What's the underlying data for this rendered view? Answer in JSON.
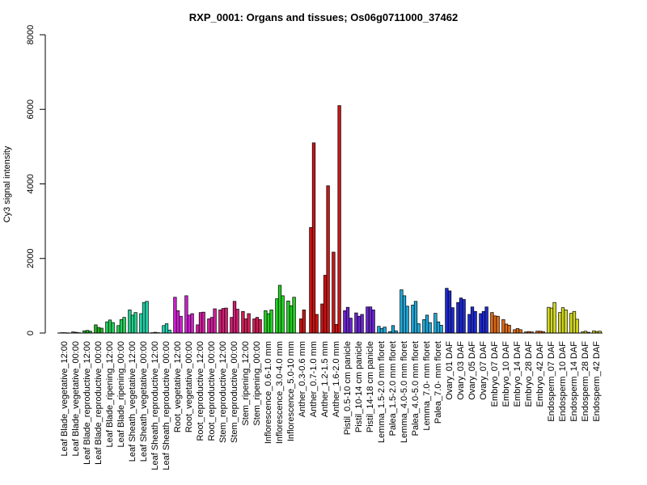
{
  "chart_data": {
    "type": "bar",
    "title": "RXP_0001: Organs and tissues; Os06g0711000_37462",
    "ylabel": "Cy3 signal intensity",
    "xlabel": "",
    "ylim": [
      0,
      8000
    ],
    "yticks": [
      0,
      2000,
      4000,
      6000,
      8000
    ],
    "grid": false,
    "groups": [
      {
        "label": "Leaf Blade_vegetative_12:00",
        "color": "#7f7f7f",
        "values": [
          10,
          10,
          5
        ]
      },
      {
        "label": "Leaf Blade_vegetative_00:00",
        "color": "#7f7f7f",
        "values": [
          30,
          20,
          10
        ]
      },
      {
        "label": "Leaf Blade_reproductive_12:00",
        "color": "#23b123",
        "values": [
          60,
          70,
          50
        ]
      },
      {
        "label": "Leaf Blade_reproductive_00:00",
        "color": "#23b123",
        "values": [
          220,
          150,
          130
        ]
      },
      {
        "label": "Leaf Blade_ripening_12:00",
        "color": "#23d15a",
        "values": [
          300,
          350,
          280
        ]
      },
      {
        "label": "Leaf Blade_ripening_00:00",
        "color": "#23d15a",
        "values": [
          200,
          360,
          420
        ]
      },
      {
        "label": "Leaf Sheath_vegetative_12:00",
        "color": "#23d18e",
        "values": [
          620,
          480,
          550
        ]
      },
      {
        "label": "Leaf Sheath_vegetative_00:00",
        "color": "#23d1a8",
        "values": [
          520,
          820,
          850
        ]
      },
      {
        "label": "Leaf Sheath_reproductive_12:00",
        "color": "#23d1b0",
        "values": [
          10,
          20,
          10
        ]
      },
      {
        "label": "Leaf Sheath_reproductive_00:00",
        "color": "#23d1b0",
        "values": [
          200,
          250,
          80
        ]
      },
      {
        "label": "Root_vegetative_12:00",
        "color": "#d11fd1",
        "values": [
          960,
          600,
          450
        ]
      },
      {
        "label": "Root_vegetative_00:00",
        "color": "#d11fd1",
        "values": [
          1000,
          480,
          520
        ]
      },
      {
        "label": "Root_reproductive_12:00",
        "color": "#d11f9e",
        "values": [
          220,
          550,
          560
        ]
      },
      {
        "label": "Root_reproductive_00:00",
        "color": "#d11f9e",
        "values": [
          380,
          420,
          650
        ]
      },
      {
        "label": "Stem_reproductive_12:00",
        "color": "#d11f75",
        "values": [
          620,
          660,
          670
        ]
      },
      {
        "label": "Stem_reproductive_00:00",
        "color": "#d11f75",
        "values": [
          420,
          850,
          640
        ]
      },
      {
        "label": "Stem_ripening_12:00",
        "color": "#d11f55",
        "values": [
          580,
          380,
          520
        ]
      },
      {
        "label": "Stem_ripening_00:00",
        "color": "#d11f55",
        "values": [
          380,
          420,
          360
        ]
      },
      {
        "label": "Inflorescence_0.6-1.0 mm",
        "color": "#23d123",
        "values": [
          600,
          520,
          620
        ]
      },
      {
        "label": "Inflorescence_3.0-4.0 mm",
        "color": "#23d123",
        "values": [
          920,
          1280,
          1000
        ]
      },
      {
        "label": "Inflorescence_5.0-10 mm",
        "color": "#23d123",
        "values": [
          860,
          730,
          960
        ]
      },
      {
        "label": "Anther_0.3-0.6 mm",
        "color": "#cc1515",
        "values": [
          380,
          620
        ]
      },
      {
        "label": "Anther_0.7-1.0 mm",
        "color": "#cc1515",
        "values": [
          2830,
          5100,
          500
        ]
      },
      {
        "label": "Anther_1.2-1.5 mm",
        "color": "#cc1515",
        "values": [
          780,
          1550,
          3950
        ]
      },
      {
        "label": "Anther_1.6-2.0 mm",
        "color": "#cc1515",
        "values": [
          2170,
          230,
          6100
        ]
      },
      {
        "label": "Pistil_0.5-10 cm panicle",
        "color": "#6a25d1",
        "values": [
          600,
          690,
          400
        ]
      },
      {
        "label": "Pistil_10-14 cm panicle",
        "color": "#6a25d1",
        "values": [
          540,
          450,
          500
        ]
      },
      {
        "label": "Pistil_14-18 cm panicle",
        "color": "#6a25d1",
        "values": [
          700,
          700,
          620
        ]
      },
      {
        "label": "Lemma_1.5-2.0 mm floret",
        "color": "#20a8d9",
        "values": [
          180,
          120,
          160
        ]
      },
      {
        "label": "Palea_1.5-2.0 mm floret",
        "color": "#20a8d9",
        "values": [
          40,
          200,
          60
        ]
      },
      {
        "label": "Lemma_4.0-5.0 mm floret",
        "color": "#20a8d9",
        "values": [
          1160,
          1000,
          720
        ]
      },
      {
        "label": "Palea_4.0-5.0 mm floret",
        "color": "#20a8d9",
        "values": [
          750,
          850,
          250
        ]
      },
      {
        "label": "Lemma_7.0- mm floret",
        "color": "#20a8d9",
        "values": [
          360,
          480,
          280
        ]
      },
      {
        "label": "Palea_7.0- mm floret",
        "color": "#20a8d9",
        "values": [
          530,
          300,
          210
        ]
      },
      {
        "label": "Ovary_01 DAF",
        "color": "#1e2ad1",
        "values": [
          1200,
          1130,
          680
        ]
      },
      {
        "label": "Ovary_03 DAF",
        "color": "#1e2ad1",
        "values": [
          820,
          940,
          900
        ]
      },
      {
        "label": "Ovary_05 DAF",
        "color": "#1e2ad1",
        "values": [
          500,
          700,
          580
        ]
      },
      {
        "label": "Ovary_07 DAF",
        "color": "#1e2ad1",
        "values": [
          520,
          580,
          700
        ]
      },
      {
        "label": "Embryo_07 DAF",
        "color": "#e06a15",
        "values": [
          550,
          460,
          450
        ]
      },
      {
        "label": "Embryo_10 DAF",
        "color": "#e06a15",
        "values": [
          360,
          240,
          210
        ]
      },
      {
        "label": "Embryo_14 DAF",
        "color": "#e06a15",
        "values": [
          90,
          120,
          90
        ]
      },
      {
        "label": "Embryo_28 DAF",
        "color": "#e06a15",
        "values": [
          30,
          40,
          30
        ]
      },
      {
        "label": "Embryo_42 DAF",
        "color": "#e06a15",
        "values": [
          50,
          50,
          40
        ]
      },
      {
        "label": "Endosperm_07 DAF",
        "color": "#d2d81e",
        "values": [
          690,
          670,
          820
        ]
      },
      {
        "label": "Endosperm_10 DAF",
        "color": "#d2d81e",
        "values": [
          550,
          680,
          620
        ]
      },
      {
        "label": "Endosperm_14 DAF",
        "color": "#d2d81e",
        "values": [
          530,
          580,
          370
        ]
      },
      {
        "label": "Endosperm_28 DAF",
        "color": "#d2d81e",
        "values": [
          30,
          50,
          20
        ]
      },
      {
        "label": "Endosperm_42 DAF",
        "color": "#d2d81e",
        "values": [
          60,
          40,
          50
        ]
      }
    ]
  }
}
